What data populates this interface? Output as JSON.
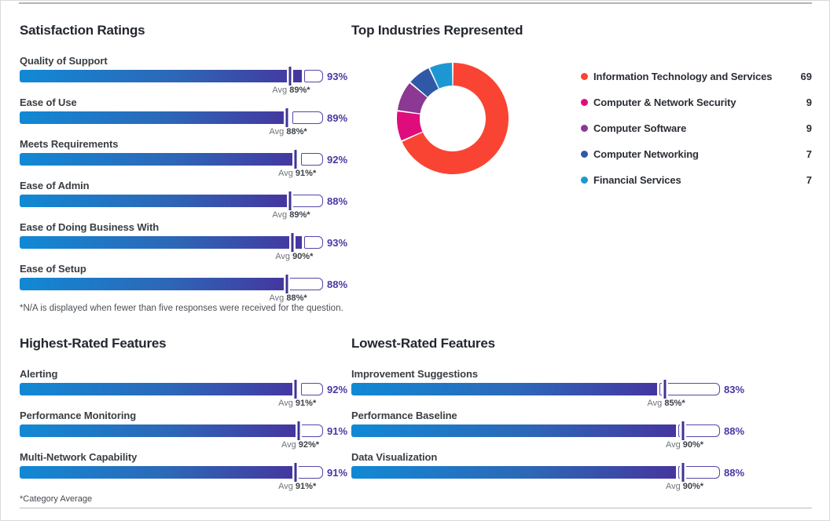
{
  "style": {
    "heading": "#23272e",
    "label": "#393e44",
    "value_text": "#4638a4",
    "bar_gradient_start": "#1189d5",
    "bar_gradient_mid": "#2d67b7",
    "bar_gradient_end": "#45369f",
    "pill_border": "#5447a7",
    "tick": "#3f3494",
    "avg_gray": "#6e7378",
    "avg_dark": "#3c4046",
    "footnote": "#4b5056",
    "legend_text": "#2a2e34",
    "rule_dark": "#b4b4b7",
    "rule_light": "#bababd"
  },
  "chart_data": [
    {
      "type": "bar",
      "orientation": "horizontal",
      "title": "Satisfaction Ratings",
      "xlim": [
        0,
        100
      ],
      "categories": [
        "Quality of Support",
        "Ease of Use",
        "Meets Requirements",
        "Ease of Admin",
        "Ease of Doing Business With",
        "Ease of Setup"
      ],
      "series": [
        {
          "name": "Rating",
          "values": [
            93,
            89,
            92,
            88,
            93,
            88
          ]
        },
        {
          "name": "Average",
          "values": [
            89,
            88,
            91,
            89,
            90,
            88
          ]
        }
      ],
      "value_suffix": "%",
      "avg_prefix": "Avg",
      "avg_suffix": "%*",
      "footnote": "*N/A is displayed when fewer than five responses were received for the question."
    },
    {
      "type": "pie",
      "donut": true,
      "title": "Top Industries Represented",
      "legend_position": "right",
      "categories": [
        "Information Technology and Services",
        "Computer & Network Security",
        "Computer Software",
        "Computer Networking",
        "Financial Services"
      ],
      "values": [
        69,
        9,
        9,
        7,
        7
      ],
      "colors": [
        "#fa4433",
        "#df0d7c",
        "#8b3992",
        "#2f59a7",
        "#1d97d3"
      ]
    },
    {
      "type": "bar",
      "orientation": "horizontal",
      "title": "Highest-Rated Features",
      "xlim": [
        0,
        100
      ],
      "categories": [
        "Alerting",
        "Performance Monitoring",
        "Multi-Network Capability"
      ],
      "series": [
        {
          "name": "Rating",
          "values": [
            92,
            91,
            91
          ]
        },
        {
          "name": "Average",
          "values": [
            91,
            92,
            91
          ]
        }
      ],
      "value_suffix": "%",
      "avg_prefix": "Avg",
      "avg_suffix": "%*",
      "footnote": "*Category Average"
    },
    {
      "type": "bar",
      "orientation": "horizontal",
      "title": "Lowest-Rated Features",
      "xlim": [
        0,
        100
      ],
      "categories": [
        "Improvement Suggestions",
        "Performance Baseline",
        "Data Visualization"
      ],
      "series": [
        {
          "name": "Rating",
          "values": [
            83,
            88,
            88
          ]
        },
        {
          "name": "Average",
          "values": [
            85,
            90,
            90
          ]
        }
      ],
      "value_suffix": "%",
      "avg_prefix": "Avg",
      "avg_suffix": "%*"
    }
  ]
}
